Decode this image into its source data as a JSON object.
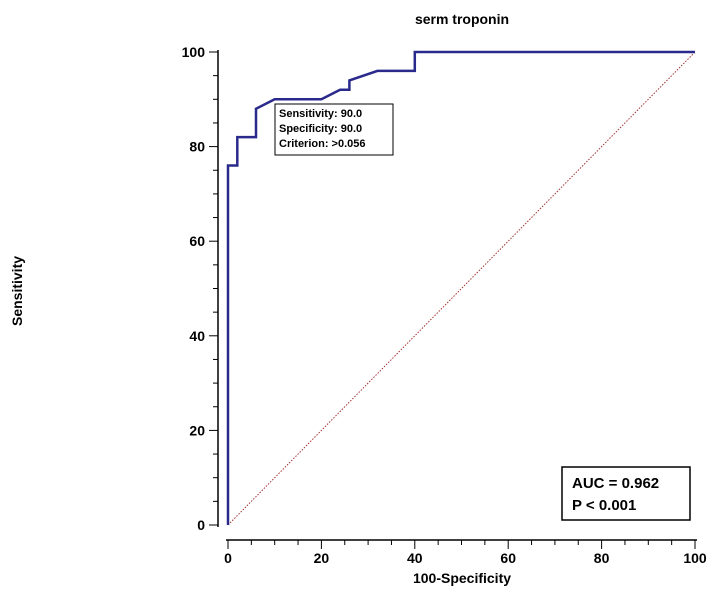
{
  "chart_data": {
    "type": "line",
    "title": "serm troponin",
    "xlabel": "100-Specificity",
    "ylabel": "Sensitivity",
    "xlim": [
      0,
      100
    ],
    "ylim": [
      0,
      100
    ],
    "x_ticks": [
      0,
      20,
      40,
      60,
      80,
      100
    ],
    "y_ticks": [
      0,
      20,
      40,
      60,
      80,
      100
    ],
    "grid": false,
    "legend": "none",
    "series": [
      {
        "kind": "roc",
        "color": "#2a2a8c",
        "x": [
          0,
          0,
          0,
          2,
          2,
          2,
          6,
          6,
          10,
          20,
          24,
          26,
          26,
          32,
          40,
          40,
          100
        ],
        "y": [
          0,
          60,
          76,
          76,
          82,
          82,
          82,
          88,
          90,
          90,
          92,
          92,
          94,
          96,
          96,
          100,
          100
        ]
      },
      {
        "kind": "reference",
        "color": "#a33333",
        "x": [
          0,
          100
        ],
        "y": [
          0,
          100
        ]
      }
    ],
    "annotations": {
      "criterion_box": {
        "lines": [
          "Sensitivity: 90.0",
          "Specificity: 90.0",
          "Criterion: >0.056"
        ]
      },
      "stats_box": {
        "lines": [
          "AUC = 0.962",
          "P < 0.001"
        ]
      }
    }
  }
}
